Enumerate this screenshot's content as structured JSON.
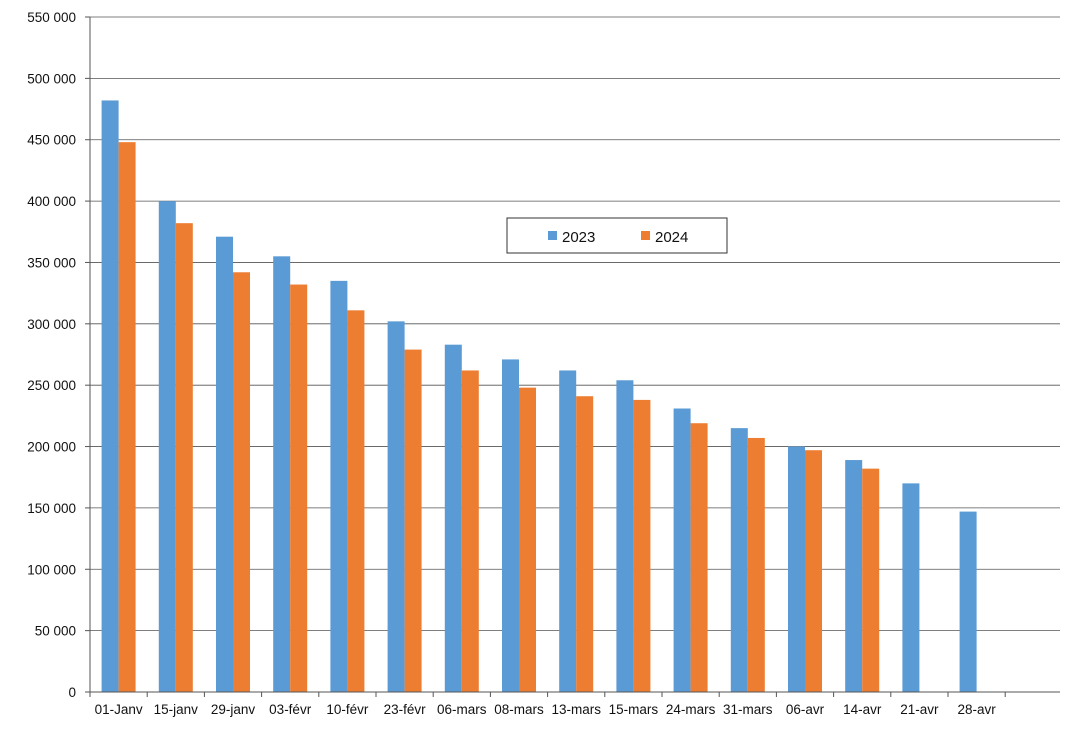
{
  "chart_data": {
    "type": "bar",
    "title": "",
    "xlabel": "",
    "ylabel": "",
    "ylim": [
      0,
      550000
    ],
    "ytick_step": 50000,
    "yticks": [
      "0",
      "50 000",
      "100 000",
      "150 000",
      "200 000",
      "250 000",
      "300 000",
      "350 000",
      "400 000",
      "450 000",
      "500 000",
      "550 000"
    ],
    "grid": true,
    "legend_position": "upper-center",
    "categories": [
      "01-Janv",
      "15-janv",
      "29-janv",
      "03-févr",
      "10-févr",
      "23-févr",
      "06-mars",
      "08-mars",
      "13-mars",
      "15-mars",
      "24-mars",
      "31-mars",
      "06-avr",
      "14-avr",
      "21-avr",
      "28-avr"
    ],
    "series": [
      {
        "name": "2023",
        "color": "#5b9bd5",
        "values": [
          482000,
          400000,
          371000,
          355000,
          335000,
          302000,
          283000,
          271000,
          262000,
          254000,
          231000,
          215000,
          200000,
          189000,
          170000,
          147000
        ]
      },
      {
        "name": "2024",
        "color": "#ed7d31",
        "values": [
          448000,
          382000,
          342000,
          332000,
          311000,
          279000,
          262000,
          248000,
          241000,
          238000,
          219000,
          207000,
          197000,
          182000,
          null,
          null
        ]
      }
    ]
  }
}
